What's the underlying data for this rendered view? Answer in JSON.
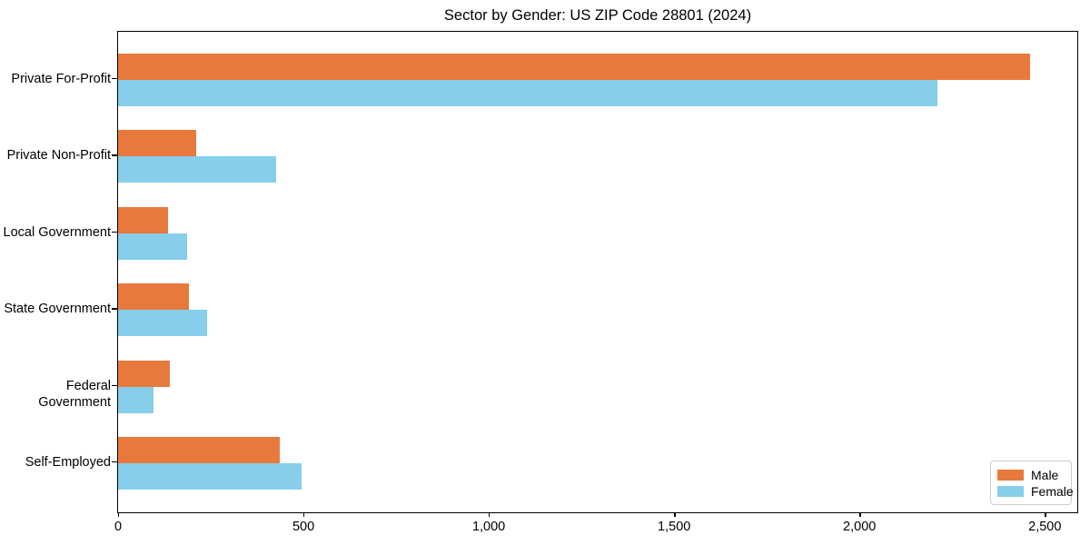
{
  "chart_data": {
    "type": "bar",
    "orientation": "horizontal",
    "title": "Sector by Gender: US ZIP Code 28801 (2024)",
    "categories": [
      "Private For-Profit",
      "Private Non-Profit",
      "Local Government",
      "State Government",
      "Federal Government",
      "Self-Employed"
    ],
    "series": [
      {
        "name": "Male",
        "color": "#E8793D",
        "values": [
          2460,
          210,
          135,
          190,
          140,
          435
        ]
      },
      {
        "name": "Female",
        "color": "#87CEEB",
        "values": [
          2210,
          425,
          185,
          240,
          95,
          495
        ]
      }
    ],
    "xlabel": "",
    "ylabel": "",
    "xlim": [
      0,
      2585
    ],
    "xticks": {
      "values": [
        0,
        500,
        1000,
        1500,
        2000,
        2500
      ],
      "labels": [
        "0",
        "500",
        "1,000",
        "1,500",
        "2,000",
        "2,500"
      ]
    },
    "legend": {
      "position": "lower right"
    },
    "grid": false,
    "background_color": "#ffffff",
    "spine_color": "#000000"
  }
}
